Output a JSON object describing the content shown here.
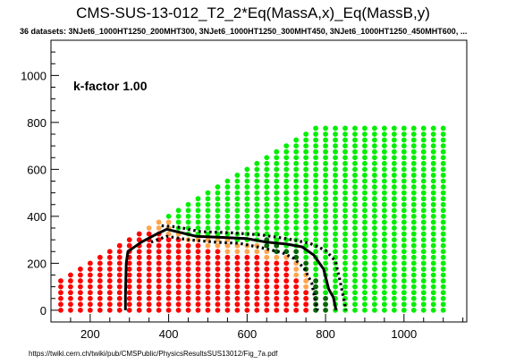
{
  "chart_data": {
    "type": "scatter",
    "title": "CMS-SUS-13-012_T2_2*Eq(MassA,x)_Eq(MassB,y)",
    "subtitle": "36 datasets: 3NJet6_1000HT1250_200MHT300, 3NJet6_1000HT1250_300MHT450, 3NJet6_1000HT1250_450MHT600,  ...",
    "annotation": "k-factor 1.00",
    "footer": "https://twiki.cern.ch/twiki/pub/CMSPublic/PhysicsResultsSUS13012/Fig_7a.pdf",
    "xlabel": "",
    "ylabel": "",
    "xlim": [
      100,
      1160
    ],
    "ylim": [
      -50,
      1150
    ],
    "x_ticks": [
      200,
      400,
      600,
      800,
      1000
    ],
    "y_ticks": [
      0,
      200,
      400,
      600,
      800,
      1000
    ],
    "grid": false,
    "colors": {
      "excluded": "#ff0000",
      "marginal": "#ffa64d",
      "dark_allowed": "#006600",
      "allowed": "#00ee00",
      "contour": "#000000"
    },
    "point_columns": [
      {
        "x": 125,
        "top": 125,
        "red_max": 125,
        "orange_max": null,
        "darkgreen": []
      },
      {
        "x": 150,
        "top": 150,
        "red_max": 150,
        "orange_max": null,
        "darkgreen": []
      },
      {
        "x": 175,
        "top": 175,
        "red_max": 175,
        "orange_max": null,
        "darkgreen": []
      },
      {
        "x": 200,
        "top": 200,
        "red_max": 200,
        "orange_max": null,
        "darkgreen": []
      },
      {
        "x": 225,
        "top": 225,
        "red_max": 225,
        "orange_max": null,
        "darkgreen": []
      },
      {
        "x": 250,
        "top": 250,
        "red_max": 250,
        "orange_max": null,
        "darkgreen": []
      },
      {
        "x": 275,
        "top": 275,
        "red_max": 275,
        "orange_max": null,
        "darkgreen": []
      },
      {
        "x": 300,
        "top": 300,
        "red_max": 300,
        "orange_max": null,
        "darkgreen": []
      },
      {
        "x": 325,
        "top": 325,
        "red_max": 325,
        "orange_max": null,
        "darkgreen": []
      },
      {
        "x": 350,
        "top": 350,
        "red_max": 325,
        "orange_max": 350,
        "darkgreen": []
      },
      {
        "x": 375,
        "top": 375,
        "red_max": 325,
        "orange_max": 375,
        "darkgreen": []
      },
      {
        "x": 400,
        "top": 400,
        "red_max": 300,
        "orange_max": 375,
        "darkgreen": []
      },
      {
        "x": 425,
        "top": 425,
        "red_max": 300,
        "orange_max": 325,
        "darkgreen": []
      },
      {
        "x": 450,
        "top": 450,
        "red_max": 275,
        "orange_max": 300,
        "darkgreen": []
      },
      {
        "x": 475,
        "top": 475,
        "red_max": 275,
        "orange_max": 300,
        "darkgreen": []
      },
      {
        "x": 500,
        "top": 500,
        "red_max": 250,
        "orange_max": 300,
        "darkgreen": []
      },
      {
        "x": 525,
        "top": 525,
        "red_max": 250,
        "orange_max": 300,
        "darkgreen": []
      },
      {
        "x": 550,
        "top": 550,
        "red_max": 225,
        "orange_max": 300,
        "darkgreen": []
      },
      {
        "x": 575,
        "top": 575,
        "red_max": 225,
        "orange_max": 275,
        "darkgreen": []
      },
      {
        "x": 600,
        "top": 600,
        "red_max": 225,
        "orange_max": 275,
        "darkgreen": []
      },
      {
        "x": 625,
        "top": 625,
        "red_max": 225,
        "orange_max": 275,
        "darkgreen": []
      },
      {
        "x": 650,
        "top": 650,
        "red_max": 200,
        "orange_max": 250,
        "darkgreen": [
          275,
          300
        ]
      },
      {
        "x": 675,
        "top": 675,
        "red_max": 200,
        "orange_max": 225,
        "darkgreen": [
          250,
          275
        ]
      },
      {
        "x": 700,
        "top": 700,
        "red_max": 200,
        "orange_max": 225,
        "darkgreen": [
          250
        ]
      },
      {
        "x": 725,
        "top": 725,
        "red_max": 125,
        "orange_max": 200,
        "darkgreen": [
          225,
          250
        ]
      },
      {
        "x": 750,
        "top": 750,
        "red_max": 75,
        "orange_max": 150,
        "darkgreen": [
          175,
          200
        ]
      },
      {
        "x": 775,
        "top": 775,
        "red_max": 0,
        "orange_max": 100,
        "darkgreen": [
          0,
          25,
          50,
          75,
          100,
          125
        ]
      },
      {
        "x": 800,
        "top": 800,
        "red_max": null,
        "orange_max": null,
        "darkgreen": [
          0,
          25,
          50
        ]
      },
      {
        "x": 825,
        "top": 825,
        "red_max": null,
        "orange_max": null,
        "darkgreen": []
      },
      {
        "x": 850,
        "top": 850,
        "red_max": null,
        "orange_max": null,
        "darkgreen": []
      },
      {
        "x": 875,
        "top": 875,
        "red_max": null,
        "orange_max": null,
        "darkgreen": []
      },
      {
        "x": 900,
        "top": 900,
        "red_max": null,
        "orange_max": null,
        "darkgreen": []
      },
      {
        "x": 925,
        "top": 925,
        "red_max": null,
        "orange_max": null,
        "darkgreen": []
      },
      {
        "x": 950,
        "top": 950,
        "red_max": null,
        "orange_max": null,
        "darkgreen": []
      },
      {
        "x": 975,
        "top": 975,
        "red_max": null,
        "orange_max": null,
        "darkgreen": []
      },
      {
        "x": 1000,
        "top": 1000,
        "red_max": null,
        "orange_max": null,
        "darkgreen": []
      },
      {
        "x": 1025,
        "top": 1025,
        "red_max": null,
        "orange_max": null,
        "darkgreen": []
      },
      {
        "x": 1050,
        "top": 1050,
        "red_max": null,
        "orange_max": null,
        "darkgreen": []
      },
      {
        "x": 1075,
        "top": 1075,
        "red_max": null,
        "orange_max": null,
        "darkgreen": []
      },
      {
        "x": 1100,
        "top": 1100,
        "red_max": null,
        "orange_max": null,
        "darkgreen": []
      }
    ],
    "point_step": 25,
    "green_cap": 775,
    "green_cap_from_x": 800,
    "contours": [
      {
        "name": "expected",
        "style": "solid",
        "points": [
          [
            290,
            0
          ],
          [
            290,
            60
          ],
          [
            292,
            200
          ],
          [
            296,
            250
          ],
          [
            330,
            290
          ],
          [
            370,
            325
          ],
          [
            395,
            345
          ],
          [
            420,
            335
          ],
          [
            470,
            315
          ],
          [
            540,
            310
          ],
          [
            600,
            305
          ],
          [
            650,
            290
          ],
          [
            700,
            282
          ],
          [
            740,
            270
          ],
          [
            770,
            235
          ],
          [
            795,
            175
          ],
          [
            808,
            90
          ],
          [
            820,
            55
          ],
          [
            827,
            0
          ]
        ]
      },
      {
        "name": "expected-plus",
        "style": "dotted",
        "points": [
          [
            382,
            360
          ],
          [
            420,
            355
          ],
          [
            480,
            335
          ],
          [
            560,
            330
          ],
          [
            640,
            320
          ],
          [
            700,
            305
          ],
          [
            760,
            285
          ],
          [
            800,
            255
          ],
          [
            825,
            210
          ],
          [
            835,
            140
          ],
          [
            845,
            60
          ],
          [
            852,
            0
          ]
        ]
      },
      {
        "name": "expected-minus",
        "style": "dotted",
        "points": [
          [
            355,
            290
          ],
          [
            395,
            315
          ],
          [
            450,
            300
          ],
          [
            520,
            290
          ],
          [
            580,
            285
          ],
          [
            640,
            265
          ],
          [
            690,
            245
          ],
          [
            720,
            220
          ],
          [
            745,
            180
          ],
          [
            765,
            115
          ],
          [
            775,
            30
          ],
          [
            780,
            0
          ]
        ]
      }
    ]
  }
}
